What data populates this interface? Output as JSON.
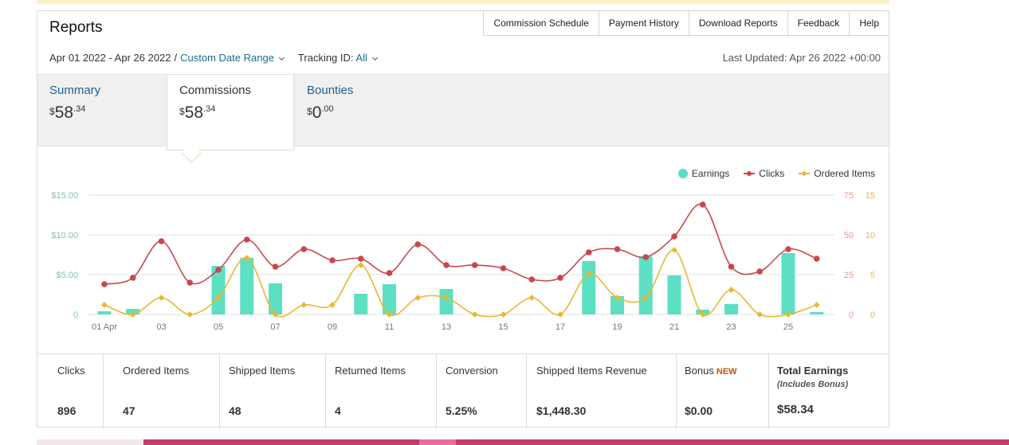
{
  "header": {
    "title": "Reports",
    "links": [
      "Commission Schedule",
      "Payment History",
      "Download Reports",
      "Feedback",
      "Help"
    ],
    "date_range": "Apr 01 2022 - Apr 26 2022",
    "separator": "/",
    "date_range_link": "Custom Date Range",
    "tracking_label": "Tracking ID:",
    "tracking_value": "All",
    "last_updated": "Last Updated: Apr 26 2022 +00:00"
  },
  "tabs": [
    {
      "label": "Summary",
      "currency": "$",
      "whole": "58",
      "decimal": ".34"
    },
    {
      "label": "Commissions",
      "currency": "$",
      "whole": "58",
      "decimal": ".34"
    },
    {
      "label": "Bounties",
      "currency": "$",
      "whole": "0",
      "decimal": ".00"
    }
  ],
  "stats": [
    {
      "label": "Clicks",
      "value": "896"
    },
    {
      "label": "Ordered Items",
      "value": "47"
    },
    {
      "label": "Shipped Items",
      "value": "48"
    },
    {
      "label": "Returned Items",
      "value": "4"
    },
    {
      "label": "Conversion",
      "value": "5.25%"
    },
    {
      "label": "Shipped Items Revenue",
      "value": "$1,448.30"
    },
    {
      "label": "Bonus",
      "badge": "NEW",
      "value": "$0.00"
    },
    {
      "label": "Total Earnings",
      "sublabel": "(Includes Bonus)",
      "value": "$58.34"
    }
  ],
  "colors": {
    "earnings": "#5ddfc3",
    "clicks": "#c9474b",
    "ordered": "#e8b830",
    "link": "#1a6e8a",
    "accent_bar": "#c23d6a"
  },
  "chart_data": {
    "type": "bar",
    "categories": [
      "01 Apr",
      "02",
      "03",
      "04",
      "05",
      "06",
      "07",
      "08",
      "09",
      "10",
      "11",
      "12",
      "13",
      "14",
      "15",
      "16",
      "17",
      "18",
      "19",
      "20",
      "21",
      "22",
      "23",
      "24",
      "25",
      "26"
    ],
    "x_tick_labels": [
      "01 Apr",
      "03",
      "05",
      "07",
      "09",
      "11",
      "13",
      "15",
      "17",
      "19",
      "21",
      "23",
      "25"
    ],
    "series": [
      {
        "name": "Earnings",
        "type": "bar",
        "axis": "left",
        "values": [
          0.4,
          0.7,
          0,
          0,
          6.1,
          7.1,
          3.9,
          0,
          0,
          2.6,
          3.8,
          0,
          3.2,
          0,
          0,
          0,
          0,
          6.7,
          2.3,
          7.3,
          4.9,
          0.6,
          1.3,
          0,
          7.7,
          0.3
        ]
      },
      {
        "name": "Clicks",
        "type": "line",
        "axis": "right-outer",
        "values": [
          19,
          23,
          46,
          20,
          28,
          47,
          30,
          41,
          34,
          35,
          26,
          44,
          31,
          31,
          29,
          22,
          23,
          39,
          41,
          36,
          49,
          69,
          30,
          27,
          41,
          35
        ]
      },
      {
        "name": "Ordered Items",
        "type": "line",
        "axis": "right-inner",
        "values": [
          1.2,
          0,
          2.1,
          0,
          2.1,
          7.1,
          0,
          1.2,
          1.2,
          6.2,
          0,
          2.1,
          2.1,
          0,
          0,
          2.1,
          0,
          5.1,
          2.1,
          2.1,
          8.1,
          0,
          3.1,
          0,
          0,
          1.2
        ]
      }
    ],
    "y_left_ticks": [
      "0",
      "$5.00",
      "$10.00",
      "$15.00"
    ],
    "y_left_range": [
      0,
      15
    ],
    "y_right_outer_ticks": [
      "0",
      "25",
      "50",
      "75"
    ],
    "y_right_outer_range": [
      0,
      75
    ],
    "y_right_inner_ticks": [
      "0",
      "5",
      "10",
      "15"
    ],
    "y_right_inner_range": [
      0,
      15
    ],
    "grid": true,
    "legend_position": "top-right"
  }
}
